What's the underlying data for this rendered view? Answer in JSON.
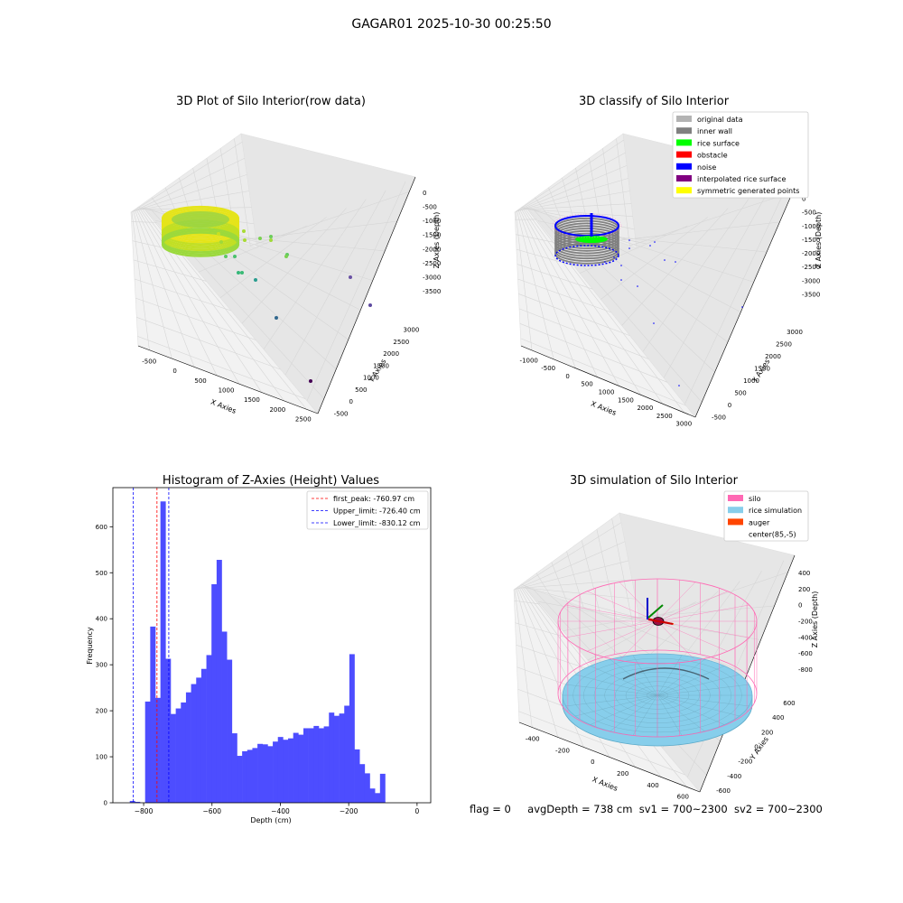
{
  "figure_title": "GAGAR01 2025-10-30 00:25:50",
  "footer": {
    "flag": "flag = 0",
    "avg_depth": "avgDepth = 738 cm",
    "sv1": "sv1 = 700~2300",
    "sv2": "sv2 = 700~2300"
  },
  "colors": {
    "histogram_bar": "#4d4dff",
    "first_peak": "#ff0000",
    "limit": "#0000ff",
    "pane": "#f2f2f2",
    "grid": "#d6d6d6"
  },
  "chart_data": [
    {
      "type": "scatter3d",
      "title": "3D Plot of Silo Interior(row data)",
      "xlabel": "X Axies",
      "ylabel": "Y Axies",
      "zlabel": "Z Axies (Depth)",
      "x_ticks": [
        "-500",
        "0",
        "500",
        "1000",
        "1500",
        "2000",
        "2500"
      ],
      "y_ticks": [
        "-500",
        "0",
        "500",
        "1000",
        "1500",
        "2000",
        "2500",
        "3000"
      ],
      "z_ticks": [
        "0",
        "-500",
        "-1000",
        "-1500",
        "-2000",
        "-2500",
        "-3000",
        "-3500"
      ],
      "colormap": "viridis"
    },
    {
      "type": "scatter3d",
      "title": "3D classify of Silo Interior",
      "xlabel": "X Axies",
      "ylabel": "Y Axies",
      "zlabel": "Z Axies (Depth)",
      "x_ticks": [
        "-1000",
        "-500",
        "0",
        "500",
        "1000",
        "1500",
        "2000",
        "2500",
        "3000"
      ],
      "y_ticks": [
        "-500",
        "0",
        "500",
        "1000",
        "1500",
        "2000",
        "2500",
        "3000"
      ],
      "z_ticks": [
        "0",
        "-500",
        "-1000",
        "-1500",
        "-2000",
        "-2500",
        "-3000",
        "-3500"
      ],
      "legend_location": "top-right",
      "legend": [
        {
          "label": "original data",
          "color": "#b3b3b3"
        },
        {
          "label": "inner wall",
          "color": "#808080"
        },
        {
          "label": "rice surface",
          "color": "#00ff00"
        },
        {
          "label": "obstacle",
          "color": "#ff0000"
        },
        {
          "label": "noise",
          "color": "#0000ff"
        },
        {
          "label": "interpolated rice surface",
          "color": "#800080"
        },
        {
          "label": "symmetric generated points",
          "color": "#ffff00"
        }
      ]
    },
    {
      "type": "bar",
      "title": "Histogram of Z-Axies (Height) Values",
      "xlabel": "Depth (cm)",
      "ylabel": "Frequency",
      "xlim": [
        -890,
        40
      ],
      "ylim": [
        0,
        685
      ],
      "x_ticks": [
        -800,
        -600,
        -400,
        -200,
        0
      ],
      "y_ticks": [
        0,
        100,
        200,
        300,
        400,
        500,
        600
      ],
      "bin_width": 14.94,
      "bin_start": -840.5,
      "values": [
        4,
        2,
        0,
        220,
        383,
        228,
        655,
        313,
        193,
        205,
        218,
        240,
        258,
        272,
        291,
        321,
        475,
        528,
        372,
        311,
        151,
        102,
        112,
        115,
        119,
        128,
        127,
        123,
        133,
        143,
        137,
        140,
        152,
        148,
        162,
        162,
        167,
        162,
        166,
        196,
        189,
        194,
        211,
        323,
        116,
        84,
        64,
        31,
        21,
        63
      ],
      "vlines": [
        {
          "value": -760.97,
          "label": "first_peak: -760.97 cm",
          "color": "#ff0000"
        },
        {
          "value": -726.4,
          "label": "Upper_limit: -726.40 cm",
          "color": "#0000ff"
        },
        {
          "value": -830.12,
          "label": "Lower_limit: -830.12 cm",
          "color": "#0000ff"
        }
      ],
      "legend_location": "top-right"
    },
    {
      "type": "surface3d",
      "title": "3D simulation of Silo Interior",
      "xlabel": "X Axies",
      "ylabel": "Y Axies",
      "zlabel": "Z Axies (Depth)",
      "x_ticks": [
        "-400",
        "-200",
        "0",
        "200",
        "400",
        "600"
      ],
      "y_ticks": [
        "-600",
        "-400",
        "-200",
        "0",
        "200",
        "400",
        "600"
      ],
      "z_ticks": [
        "400",
        "200",
        "0",
        "-200",
        "-400",
        "-600",
        "-800"
      ],
      "legend_location": "top-right",
      "legend": [
        {
          "label": "silo",
          "color": "#ff69b4"
        },
        {
          "label": "rice simulation",
          "color": "#87ceeb"
        },
        {
          "label": "auger",
          "color": "#ff4500"
        },
        {
          "label": "center(85,-5)",
          "color": "#ffffff"
        }
      ]
    }
  ]
}
